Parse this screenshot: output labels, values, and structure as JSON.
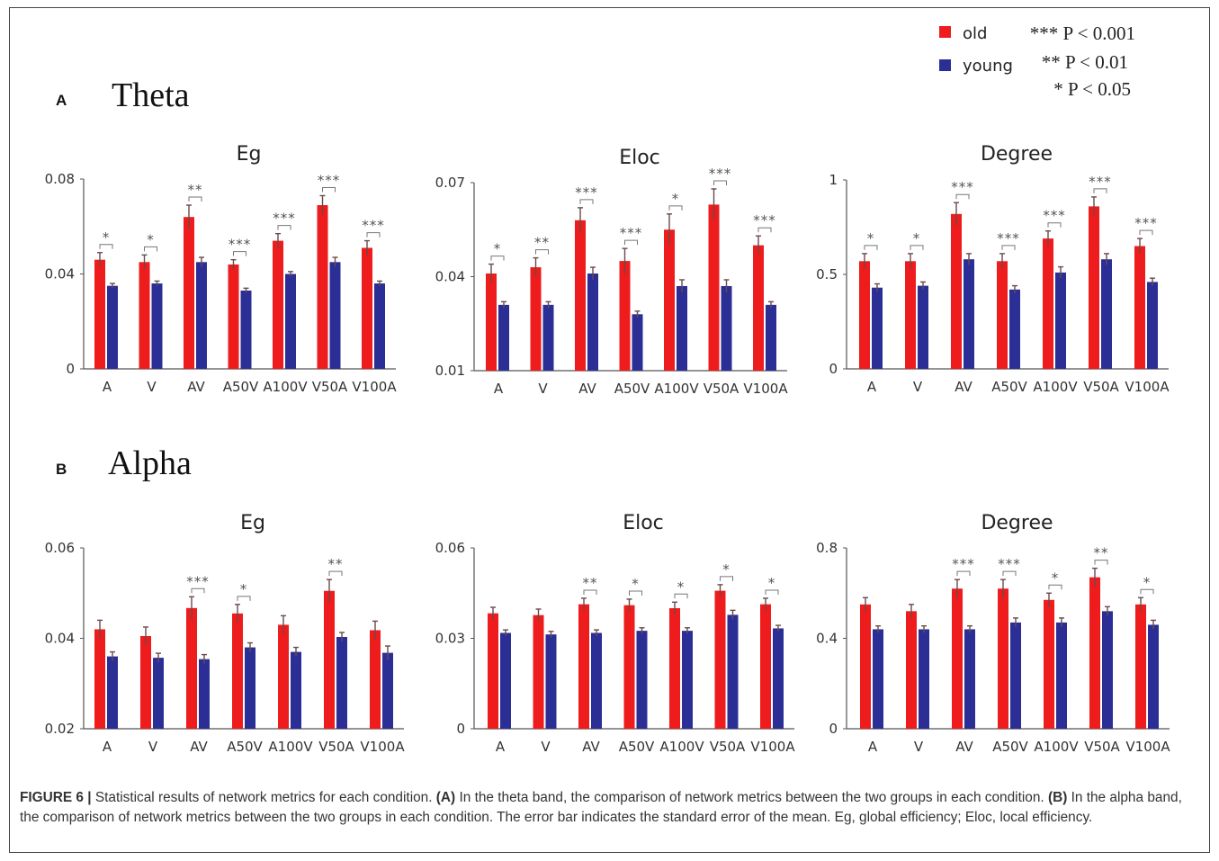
{
  "legend": {
    "series": [
      {
        "name": "old",
        "color": "#ee1c1c"
      },
      {
        "name": "young",
        "color": "#2b2f95"
      }
    ],
    "significance": [
      "*** P < 0.001",
      "** P < 0.01",
      "* P < 0.05"
    ]
  },
  "sections": [
    {
      "letter": "A",
      "title": "Theta"
    },
    {
      "letter": "B",
      "title": "Alpha"
    }
  ],
  "caption": {
    "label": "FIGURE 6 |",
    "intro": "Statistical results of network metrics for each condition.",
    "a_label": "(A)",
    "a_text": "In the theta band, the comparison of network metrics between the two groups in each condition.",
    "b_label": "(B)",
    "b_text": "In the alpha band, the comparison of network metrics between the two groups in each condition. The error bar indicates the standard error of the mean. Eg, global efficiency; Eloc, local efficiency."
  },
  "chart_data": [
    {
      "type": "bar",
      "band": "Theta",
      "title": "Eg",
      "categories": [
        "A",
        "V",
        "AV",
        "A50V",
        "A100V",
        "V50A",
        "V100A"
      ],
      "ylim": [
        0,
        0.08
      ],
      "yticks": [
        "0",
        "0.04",
        "0.08"
      ],
      "ytick_values": [
        0,
        0.04,
        0.08
      ],
      "series": [
        {
          "name": "old",
          "values": [
            0.046,
            0.045,
            0.064,
            0.044,
            0.054,
            0.069,
            0.051
          ],
          "errors": [
            0.003,
            0.003,
            0.005,
            0.002,
            0.003,
            0.004,
            0.003
          ]
        },
        {
          "name": "young",
          "values": [
            0.035,
            0.036,
            0.045,
            0.033,
            0.04,
            0.045,
            0.036
          ],
          "errors": [
            0.001,
            0.001,
            0.002,
            0.001,
            0.001,
            0.002,
            0.001
          ]
        }
      ],
      "significance": [
        "*",
        "*",
        "**",
        "***",
        "***",
        "***",
        "***"
      ]
    },
    {
      "type": "bar",
      "band": "Theta",
      "title": "Eloc",
      "categories": [
        "A",
        "V",
        "AV",
        "A50V",
        "A100V",
        "V50A",
        "V100A"
      ],
      "ylim": [
        0.01,
        0.07
      ],
      "yticks": [
        "0.01",
        "0.04",
        "0.07"
      ],
      "ytick_values": [
        0.01,
        0.04,
        0.07
      ],
      "series": [
        {
          "name": "old",
          "values": [
            0.041,
            0.043,
            0.058,
            0.045,
            0.055,
            0.063,
            0.05
          ],
          "errors": [
            0.003,
            0.003,
            0.004,
            0.004,
            0.005,
            0.005,
            0.003
          ]
        },
        {
          "name": "young",
          "values": [
            0.031,
            0.031,
            0.041,
            0.028,
            0.037,
            0.037,
            0.031
          ],
          "errors": [
            0.001,
            0.001,
            0.002,
            0.001,
            0.002,
            0.002,
            0.001
          ]
        }
      ],
      "significance": [
        "*",
        "**",
        "***",
        "***",
        "*",
        "***",
        "***"
      ]
    },
    {
      "type": "bar",
      "band": "Theta",
      "title": "Degree",
      "categories": [
        "A",
        "V",
        "AV",
        "A50V",
        "A100V",
        "V50A",
        "V100A"
      ],
      "ylim": [
        0,
        1
      ],
      "yticks": [
        "0",
        "0.5",
        "1"
      ],
      "ytick_values": [
        0,
        0.5,
        1
      ],
      "series": [
        {
          "name": "old",
          "values": [
            0.57,
            0.57,
            0.82,
            0.57,
            0.69,
            0.86,
            0.65
          ],
          "errors": [
            0.04,
            0.04,
            0.06,
            0.04,
            0.04,
            0.05,
            0.04
          ]
        },
        {
          "name": "young",
          "values": [
            0.43,
            0.44,
            0.58,
            0.42,
            0.51,
            0.58,
            0.46
          ],
          "errors": [
            0.02,
            0.02,
            0.03,
            0.02,
            0.03,
            0.03,
            0.02
          ]
        }
      ],
      "significance": [
        "*",
        "*",
        "***",
        "***",
        "***",
        "***",
        "***"
      ]
    },
    {
      "type": "bar",
      "band": "Alpha",
      "title": "Eg",
      "categories": [
        "A",
        "V",
        "AV",
        "A50V",
        "A100V",
        "V50A",
        "V100A"
      ],
      "ylim": [
        0.02,
        0.06
      ],
      "yticks": [
        "0.02",
        "0.04",
        "0.06"
      ],
      "ytick_values": [
        0.02,
        0.04,
        0.06
      ],
      "series": [
        {
          "name": "old",
          "values": [
            0.042,
            0.0405,
            0.0467,
            0.0455,
            0.043,
            0.0505,
            0.0418
          ],
          "errors": [
            0.002,
            0.002,
            0.0025,
            0.002,
            0.002,
            0.0025,
            0.002
          ]
        },
        {
          "name": "young",
          "values": [
            0.036,
            0.0357,
            0.0354,
            0.038,
            0.037,
            0.0403,
            0.0368
          ],
          "errors": [
            0.001,
            0.001,
            0.001,
            0.001,
            0.001,
            0.001,
            0.0015
          ]
        }
      ],
      "significance": [
        "",
        "",
        "***",
        "*",
        "",
        "**",
        ""
      ]
    },
    {
      "type": "bar",
      "band": "Alpha",
      "title": "Eloc",
      "categories": [
        "A",
        "V",
        "AV",
        "A50V",
        "A100V",
        "V50A",
        "V100A"
      ],
      "ylim": [
        0,
        0.06
      ],
      "yticks": [
        "0",
        "0.03",
        "0.06"
      ],
      "ytick_values": [
        0,
        0.03,
        0.06
      ],
      "series": [
        {
          "name": "old",
          "values": [
            0.0383,
            0.0377,
            0.0413,
            0.041,
            0.04,
            0.0458,
            0.0413
          ],
          "errors": [
            0.002,
            0.002,
            0.002,
            0.002,
            0.002,
            0.002,
            0.002
          ]
        },
        {
          "name": "young",
          "values": [
            0.0318,
            0.0313,
            0.0318,
            0.0325,
            0.0325,
            0.0378,
            0.0333
          ],
          "errors": [
            0.001,
            0.001,
            0.001,
            0.001,
            0.001,
            0.0015,
            0.001
          ]
        }
      ],
      "significance": [
        "",
        "",
        "**",
        "*",
        "*",
        "*",
        "*"
      ]
    },
    {
      "type": "bar",
      "band": "Alpha",
      "title": "Degree",
      "categories": [
        "A",
        "V",
        "AV",
        "A50V",
        "A100V",
        "V50A",
        "V100A"
      ],
      "ylim": [
        0,
        0.8
      ],
      "yticks": [
        "0",
        "0.4",
        "0.8"
      ],
      "ytick_values": [
        0,
        0.4,
        0.8
      ],
      "series": [
        {
          "name": "old",
          "values": [
            0.55,
            0.52,
            0.62,
            0.62,
            0.57,
            0.67,
            0.55
          ],
          "errors": [
            0.03,
            0.03,
            0.04,
            0.04,
            0.03,
            0.04,
            0.03
          ]
        },
        {
          "name": "young",
          "values": [
            0.44,
            0.44,
            0.44,
            0.47,
            0.47,
            0.52,
            0.46
          ],
          "errors": [
            0.015,
            0.015,
            0.015,
            0.02,
            0.02,
            0.02,
            0.02
          ]
        }
      ],
      "significance": [
        "",
        "",
        "***",
        "***",
        "*",
        "**",
        "*"
      ]
    }
  ]
}
